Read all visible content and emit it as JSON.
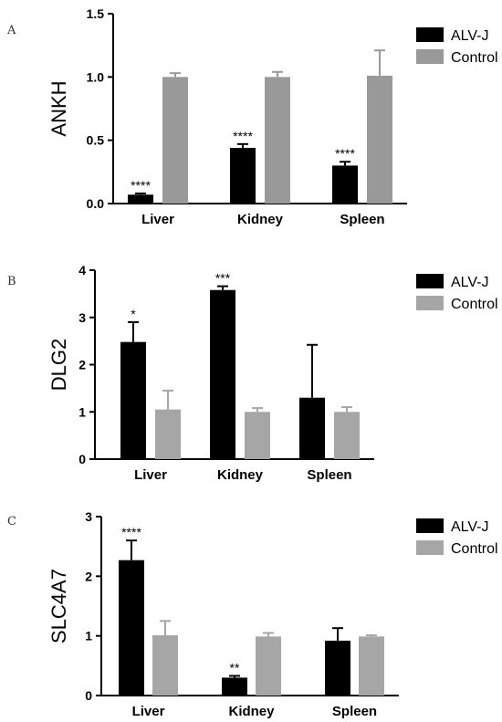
{
  "chart_data": [
    {
      "type": "bar",
      "panel": "A",
      "ylabel": "ANKH",
      "categories": [
        "Liver",
        "Kidney",
        "Spleen"
      ],
      "ylim": [
        0,
        1.5
      ],
      "yticks": [
        "0.0",
        "0.5",
        "1.0",
        "1.5"
      ],
      "tick_values": [
        0,
        0.5,
        1.0,
        1.5
      ],
      "series": [
        {
          "name": "ALV-J",
          "color": "#000000",
          "values": [
            0.07,
            0.44,
            0.3
          ],
          "errors": [
            0.01,
            0.03,
            0.03
          ],
          "significance": [
            "****",
            "****",
            "****"
          ]
        },
        {
          "name": "Control",
          "color": "#999999",
          "values": [
            1.0,
            1.0,
            1.01
          ],
          "errors": [
            0.03,
            0.04,
            0.2
          ],
          "significance": [
            "",
            "",
            ""
          ]
        }
      ]
    },
    {
      "type": "bar",
      "panel": "B",
      "ylabel": "DLG2",
      "categories": [
        "Liver",
        "Kidney",
        "Spleen"
      ],
      "ylim": [
        0,
        4
      ],
      "yticks": [
        "0",
        "1",
        "2",
        "3",
        "4"
      ],
      "tick_values": [
        0,
        1,
        2,
        3,
        4
      ],
      "series": [
        {
          "name": "ALV-J",
          "color": "#000000",
          "values": [
            2.48,
            3.58,
            1.3
          ],
          "errors": [
            0.42,
            0.08,
            1.12
          ],
          "significance": [
            "*",
            "***",
            ""
          ]
        },
        {
          "name": "Control",
          "color": "#a6a6a6",
          "values": [
            1.05,
            1.0,
            1.0
          ],
          "errors": [
            0.4,
            0.08,
            0.1
          ],
          "significance": [
            "",
            "",
            ""
          ]
        }
      ]
    },
    {
      "type": "bar",
      "panel": "C",
      "ylabel": "SLC4A7",
      "categories": [
        "Liver",
        "Kidney",
        "Spleen"
      ],
      "ylim": [
        0,
        3
      ],
      "yticks": [
        "0",
        "1",
        "2",
        "3"
      ],
      "tick_values": [
        0,
        1,
        2,
        3
      ],
      "series": [
        {
          "name": "ALV-J",
          "color": "#000000",
          "values": [
            2.27,
            0.3,
            0.92
          ],
          "errors": [
            0.33,
            0.03,
            0.21
          ],
          "significance": [
            "****",
            "**",
            ""
          ]
        },
        {
          "name": "Control",
          "color": "#a6a6a6",
          "values": [
            1.01,
            0.99,
            0.99
          ],
          "errors": [
            0.24,
            0.06,
            0.02
          ],
          "significance": [
            "",
            "",
            ""
          ]
        }
      ]
    }
  ]
}
